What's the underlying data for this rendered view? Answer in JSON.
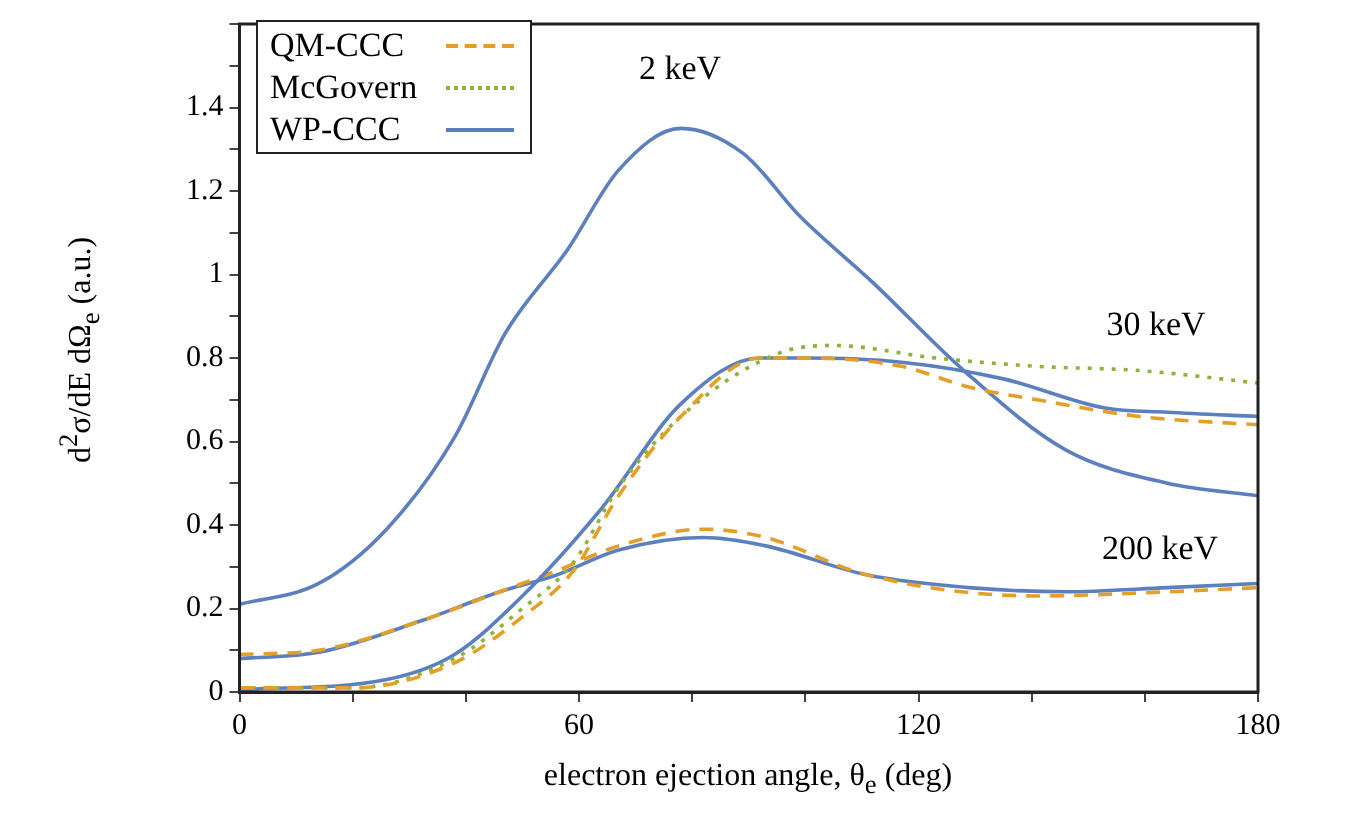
{
  "chart_data": {
    "type": "line",
    "xlabel": "electron ejection angle, θ$_{e}$ (deg)",
    "ylabel": "d$^{2}$σ/dE dΩ$_{e}$ (a.u.)",
    "xlim": [
      0,
      180
    ],
    "xticks": [
      0,
      {
        "value": 20,
        "label": null
      },
      {
        "value": 40,
        "label": null
      },
      60,
      {
        "value": 80,
        "label": null
      },
      {
        "value": 100,
        "label": null
      },
      120,
      {
        "value": 140,
        "label": null
      },
      {
        "value": 160,
        "label": null
      },
      180
    ],
    "ylim": [
      0,
      1.6
    ],
    "yticks": [
      0,
      {
        "value": 0.1,
        "label": null
      },
      0.2,
      {
        "value": 0.3,
        "label": null
      },
      0.4,
      {
        "value": 0.5,
        "label": null
      },
      0.6,
      {
        "value": 0.7,
        "label": null
      },
      0.8,
      {
        "value": 0.9,
        "label": null
      },
      1,
      {
        "value": 1.1,
        "label": null
      },
      1.2,
      {
        "value": 1.3,
        "label": null
      },
      1.4,
      {
        "value": 1.5,
        "label": null
      },
      {
        "value": 1.6,
        "label": null
      }
    ],
    "grid": false,
    "legend": "top left",
    "marker": "none",
    "annotations": [
      "2 keV",
      "30 keV",
      "200 keV"
    ],
    "series": [
      {
        "name": "QM-CCC",
        "color": "#e69f26",
        "line_style": "dashed",
        "x": [
          0,
          20,
          38,
          50,
          59,
          67,
          78,
          92,
          100,
          117,
          129,
          141,
          159,
          180
        ],
        "values": [
          0.01,
          0.01,
          0.07,
          0.18,
          0.29,
          0.47,
          0.66,
          0.8,
          0.8,
          0.78,
          0.73,
          0.7,
          0.66,
          0.64
        ]
      },
      {
        "name": "McGovern",
        "color": "#8db33a",
        "line_style": "dotted",
        "x": [
          0,
          20,
          38,
          50,
          59,
          67,
          78,
          95,
          105,
          123,
          141,
          159,
          180
        ],
        "values": [
          0.01,
          0.01,
          0.08,
          0.2,
          0.31,
          0.49,
          0.66,
          0.81,
          0.83,
          0.8,
          0.78,
          0.77,
          0.74
        ]
      },
      {
        "name": "WP-CCC",
        "color": "#5b7fbf",
        "line_style": "solid",
        "x": [
          0,
          14,
          26,
          38,
          47,
          58,
          67,
          78,
          89,
          99,
          112,
          128,
          146,
          164,
          180
        ],
        "values": [
          0.21,
          0.26,
          0.39,
          0.61,
          0.86,
          1.06,
          1.25,
          1.35,
          1.29,
          1.14,
          0.98,
          0.77,
          0.58,
          0.5,
          0.47
        ]
      },
      {
        "color": "#5b7fbf",
        "line_style": "solid",
        "x": [
          0,
          26,
          38,
          50,
          64,
          78,
          92,
          100,
          117,
          135,
          153,
          164,
          180
        ],
        "values": [
          0.005,
          0.03,
          0.09,
          0.23,
          0.44,
          0.69,
          0.8,
          0.8,
          0.79,
          0.75,
          0.68,
          0.67,
          0.66
        ]
      },
      {
        "color": "#e69f26",
        "line_style": "dashed",
        "x": [
          0,
          14,
          32,
          46,
          56,
          67,
          82,
          93,
          111,
          141,
          164,
          180
        ],
        "values": [
          0.09,
          0.1,
          0.17,
          0.24,
          0.29,
          0.35,
          0.39,
          0.37,
          0.28,
          0.23,
          0.24,
          0.25
        ]
      },
      {
        "color": "#5b7fbf",
        "line_style": "solid",
        "x": [
          0,
          14,
          32,
          46,
          56,
          67,
          82,
          93,
          111,
          129,
          146,
          164,
          180
        ],
        "values": [
          0.08,
          0.095,
          0.17,
          0.24,
          0.28,
          0.34,
          0.37,
          0.35,
          0.28,
          0.25,
          0.24,
          0.25,
          0.26
        ]
      }
    ]
  }
}
